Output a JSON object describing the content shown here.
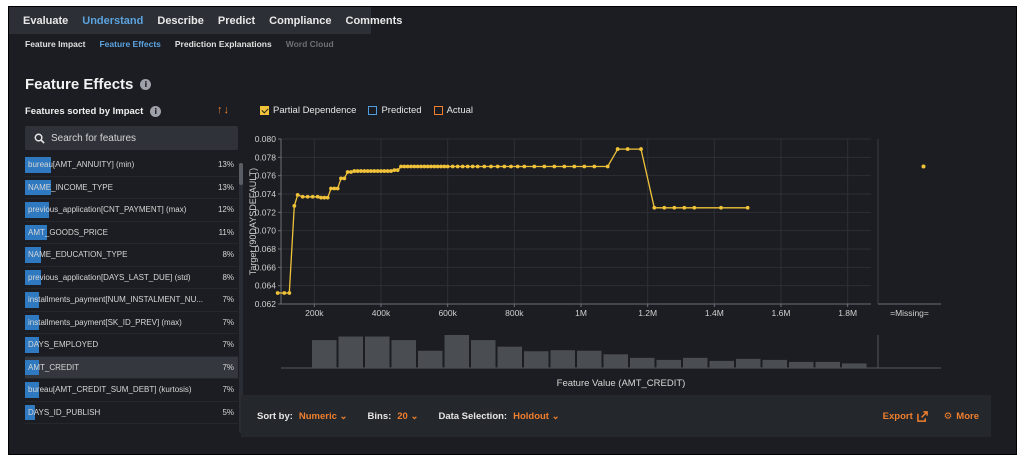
{
  "top_tabs": [
    "Evaluate",
    "Understand",
    "Describe",
    "Predict",
    "Compliance",
    "Comments"
  ],
  "sub_tabs": [
    "Feature Impact",
    "Feature Effects",
    "Prediction Explanations",
    "Word Cloud"
  ],
  "title": "Feature Effects",
  "sorted_label": "Features sorted by Impact",
  "legend": {
    "partial_dependence": "Partial Dependence",
    "predicted": "Predicted",
    "actual": "Actual"
  },
  "search": {
    "placeholder": "Search for features"
  },
  "features": [
    {
      "name": "bureau[AMT_ANNUITY] (min)",
      "impact": "13%",
      "fraction": 0.13
    },
    {
      "name": "NAME_INCOME_TYPE",
      "impact": "13%",
      "fraction": 0.13
    },
    {
      "name": "previous_application[CNT_PAYMENT] (max)",
      "impact": "12%",
      "fraction": 0.12
    },
    {
      "name": "AMT_GOODS_PRICE",
      "impact": "11%",
      "fraction": 0.11
    },
    {
      "name": "NAME_EDUCATION_TYPE",
      "impact": "8%",
      "fraction": 0.08
    },
    {
      "name": "previous_application[DAYS_LAST_DUE] (std)",
      "impact": "8%",
      "fraction": 0.08
    },
    {
      "name": "installments_payment[NUM_INSTALMENT_NU...",
      "impact": "7%",
      "fraction": 0.07
    },
    {
      "name": "installments_payment[SK_ID_PREV] (max)",
      "impact": "7%",
      "fraction": 0.07
    },
    {
      "name": "DAYS_EMPLOYED",
      "impact": "7%",
      "fraction": 0.07
    },
    {
      "name": "AMT_CREDIT",
      "impact": "7%",
      "fraction": 0.07,
      "selected": true
    },
    {
      "name": "bureau[AMT_CREDIT_SUM_DEBT] (kurtosis)",
      "impact": "7%",
      "fraction": 0.07
    },
    {
      "name": "DAYS_ID_PUBLISH",
      "impact": "5%",
      "fraction": 0.05
    }
  ],
  "bottom": {
    "sort_label": "Sort by:",
    "sort_value": "Numeric",
    "bins_label": "Bins:",
    "bins_value": "20",
    "data_label": "Data Selection:",
    "data_value": "Holdout",
    "export": "Export",
    "more": "More"
  },
  "colors": {
    "pd_line": "#f0c23a",
    "bars": "#4a4d52",
    "accent": "#f07f2e",
    "link": "#5ba3e0"
  },
  "chart_data": {
    "type": "line",
    "ylabel": "Target (90DAYSDEFAULT)",
    "xlabel": "Feature Value (AMT_CREDIT)",
    "ylim": [
      0.062,
      0.08
    ],
    "yticks": [
      "0.062",
      "0.064",
      "0.066",
      "0.068",
      "0.070",
      "0.072",
      "0.074",
      "0.076",
      "0.078",
      "0.080"
    ],
    "xlim": [
      100000,
      1870000
    ],
    "xticks": [
      {
        "value": 200000,
        "label": "200k"
      },
      {
        "value": 400000,
        "label": "400k"
      },
      {
        "value": 600000,
        "label": "600k"
      },
      {
        "value": 800000,
        "label": "800k"
      },
      {
        "value": 1000000,
        "label": "1M"
      },
      {
        "value": 1200000,
        "label": "1.2M"
      },
      {
        "value": 1400000,
        "label": "1.4M"
      },
      {
        "value": 1600000,
        "label": "1.6M"
      },
      {
        "value": 1800000,
        "label": "1.8M"
      }
    ],
    "missing_label": "=Missing=",
    "missing_value": 0.077,
    "series": [
      {
        "x": [
          90000,
          110000,
          125000,
          140000,
          150000,
          165000,
          180000,
          195000,
          210000,
          220000,
          230000,
          240000,
          250000,
          260000,
          270000,
          280000,
          290000,
          300000,
          310000,
          320000,
          330000,
          340000,
          350000,
          360000,
          370000,
          380000,
          390000,
          400000,
          410000,
          420000,
          430000,
          440000,
          450000,
          460000,
          470000,
          480000,
          490000,
          500000,
          510000,
          520000,
          530000,
          540000,
          550000,
          560000,
          570000,
          580000,
          590000,
          600000,
          615000,
          630000,
          645000,
          660000,
          675000,
          690000,
          710000,
          730000,
          750000,
          770000,
          790000,
          810000,
          830000,
          860000,
          890000,
          920000,
          950000,
          980000,
          1010000,
          1040000,
          1080000,
          1110000,
          1140000,
          1180000,
          1220000,
          1250000,
          1280000,
          1310000,
          1340000,
          1420000,
          1500000
        ],
        "y": [
          0.0632,
          0.0632,
          0.0632,
          0.0727,
          0.0739,
          0.0737,
          0.0737,
          0.0737,
          0.0737,
          0.0736,
          0.0736,
          0.0736,
          0.0746,
          0.0746,
          0.0746,
          0.0757,
          0.0757,
          0.0764,
          0.0764,
          0.0765,
          0.0765,
          0.0765,
          0.0765,
          0.0765,
          0.0765,
          0.0765,
          0.0765,
          0.0765,
          0.0765,
          0.0765,
          0.0765,
          0.0766,
          0.0766,
          0.077,
          0.077,
          0.077,
          0.077,
          0.077,
          0.077,
          0.077,
          0.077,
          0.077,
          0.077,
          0.077,
          0.077,
          0.077,
          0.077,
          0.077,
          0.077,
          0.077,
          0.077,
          0.077,
          0.077,
          0.077,
          0.077,
          0.077,
          0.077,
          0.077,
          0.077,
          0.077,
          0.077,
          0.077,
          0.077,
          0.077,
          0.077,
          0.077,
          0.077,
          0.077,
          0.077,
          0.0789,
          0.0789,
          0.0789,
          0.0725,
          0.0725,
          0.0725,
          0.0725,
          0.0725,
          0.0725,
          0.0725
        ]
      }
    ],
    "histogram": [
      0.55,
      0.62,
      0.62,
      0.55,
      0.34,
      0.65,
      0.55,
      0.42,
      0.33,
      0.35,
      0.34,
      0.27,
      0.2,
      0.16,
      0.2,
      0.14,
      0.18,
      0.16,
      0.12,
      0.12,
      0.09
    ]
  }
}
